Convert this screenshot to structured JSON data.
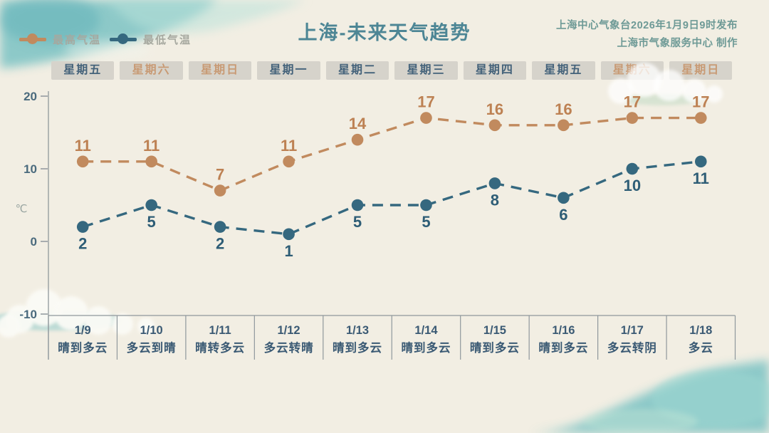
{
  "header": {
    "title": "上海-未来天气趋势",
    "source_line1": "上海中心气象台2026年1月9日9时发布",
    "source_line2": "上海市气象服务中心 制作",
    "legend": [
      {
        "label": "最高气温",
        "color": "#c18a5e"
      },
      {
        "label": "最低气温",
        "color": "#35687f"
      }
    ]
  },
  "weekday_row": [
    {
      "label": "星期五",
      "weekend": false
    },
    {
      "label": "星期六",
      "weekend": true
    },
    {
      "label": "星期日",
      "weekend": true
    },
    {
      "label": "星期一",
      "weekend": false
    },
    {
      "label": "星期二",
      "weekend": false
    },
    {
      "label": "星期三",
      "weekend": false
    },
    {
      "label": "星期四",
      "weekend": false
    },
    {
      "label": "星期五",
      "weekend": false
    },
    {
      "label": "星期六",
      "weekend": true
    },
    {
      "label": "星期日",
      "weekend": true
    }
  ],
  "chart_data": {
    "type": "line",
    "title": "上海-未来天气趋势",
    "categories": [
      "1/9",
      "1/10",
      "1/11",
      "1/12",
      "1/13",
      "1/14",
      "1/15",
      "1/16",
      "1/17",
      "1/18"
    ],
    "weather": [
      "晴到多云",
      "多云到晴",
      "晴转多云",
      "多云转晴",
      "晴到多云",
      "晴到多云",
      "晴到多云",
      "晴到多云",
      "多云转阴",
      "多云"
    ],
    "series": [
      {
        "name": "最高气温",
        "values": [
          11,
          11,
          7,
          11,
          14,
          17,
          16,
          16,
          17,
          17
        ],
        "color": "#c18a5e",
        "label_color": "#bd8153",
        "label_side": "above"
      },
      {
        "name": "最低气温",
        "values": [
          2,
          5,
          2,
          1,
          5,
          5,
          8,
          6,
          10,
          11
        ],
        "color": "#35687f",
        "label_color": "#2e5d76",
        "label_side": "below"
      }
    ],
    "ylabel": "℃",
    "yticks": [
      20,
      10,
      0,
      -10
    ],
    "ylim": [
      -10,
      20
    ],
    "grid": false,
    "line_style": "dashed",
    "legend_position": "top-left"
  },
  "colors": {
    "background": "#f2eee3",
    "watercolor": "#7cc3c4",
    "watercolor_light": "#b9e2da",
    "title": "#4d8695",
    "source_text": "#6e9a96",
    "legend_text": "#a6a89f",
    "header_box_bg": "#d6d3cb",
    "weekday_text": "#44627a",
    "weekend_text": "#c89a74",
    "axis_line": "#8f979c",
    "tick_text": "#4a6a7d",
    "unit_text": "#9aa6a2",
    "date_text": "#3b5a74"
  }
}
